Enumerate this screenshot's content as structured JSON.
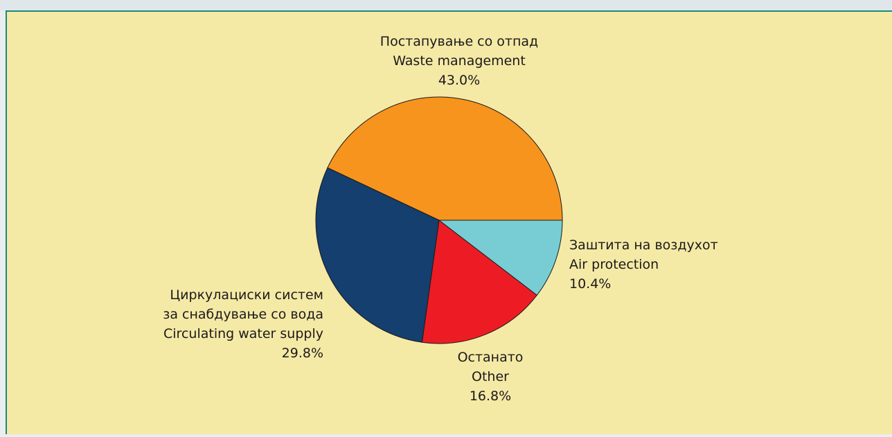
{
  "chart_data": {
    "type": "pie",
    "categories": [
      [
        "Постапување со отпад",
        "Waste management"
      ],
      [
        "Циркулациски систем",
        "за снабдување со вода",
        "Circulating water supply"
      ],
      [
        "Останато",
        "Other"
      ],
      [
        "Заштита на воздухот",
        "Air protection"
      ]
    ],
    "values": [
      43.0,
      29.8,
      16.8,
      10.4
    ],
    "value_labels": [
      "43.0%",
      "29.8%",
      "16.8%",
      "10.4%"
    ],
    "colors": [
      "#f7941d",
      "#143f6e",
      "#ed1c24",
      "#78cdd4"
    ]
  }
}
